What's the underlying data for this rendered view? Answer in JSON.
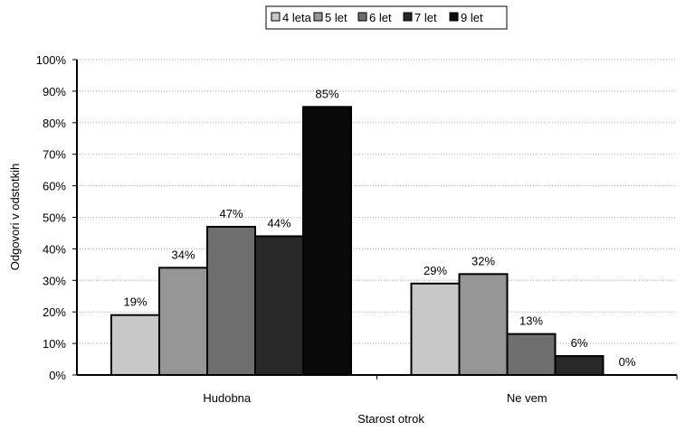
{
  "chart_data": {
    "type": "bar",
    "categories": [
      "Hudobna",
      "Ne vem"
    ],
    "series": [
      {
        "name": "4 leta",
        "values": [
          19,
          29
        ],
        "color": "#c8c8c8"
      },
      {
        "name": "5 let",
        "values": [
          34,
          32
        ],
        "color": "#969696"
      },
      {
        "name": "6 let",
        "values": [
          47,
          13
        ],
        "color": "#6e6e6e"
      },
      {
        "name": "7 let",
        "values": [
          44,
          6
        ],
        "color": "#282828"
      },
      {
        "name": "9 let",
        "values": [
          85,
          0
        ],
        "color": "#0a0a0a"
      }
    ],
    "value_labels": [
      [
        "19%",
        "29%"
      ],
      [
        "34%",
        "32%"
      ],
      [
        "47%",
        "13%"
      ],
      [
        "44%",
        "6%"
      ],
      [
        "85%",
        "0%"
      ]
    ],
    "xlabel": "Starost otrok",
    "ylabel": "Odgovori v odstotkih",
    "ylim": [
      0,
      100
    ],
    "yticks": [
      "0%",
      "10%",
      "20%",
      "30%",
      "40%",
      "50%",
      "60%",
      "70%",
      "80%",
      "90%",
      "100%"
    ],
    "grid": true,
    "legend_position": "top"
  }
}
